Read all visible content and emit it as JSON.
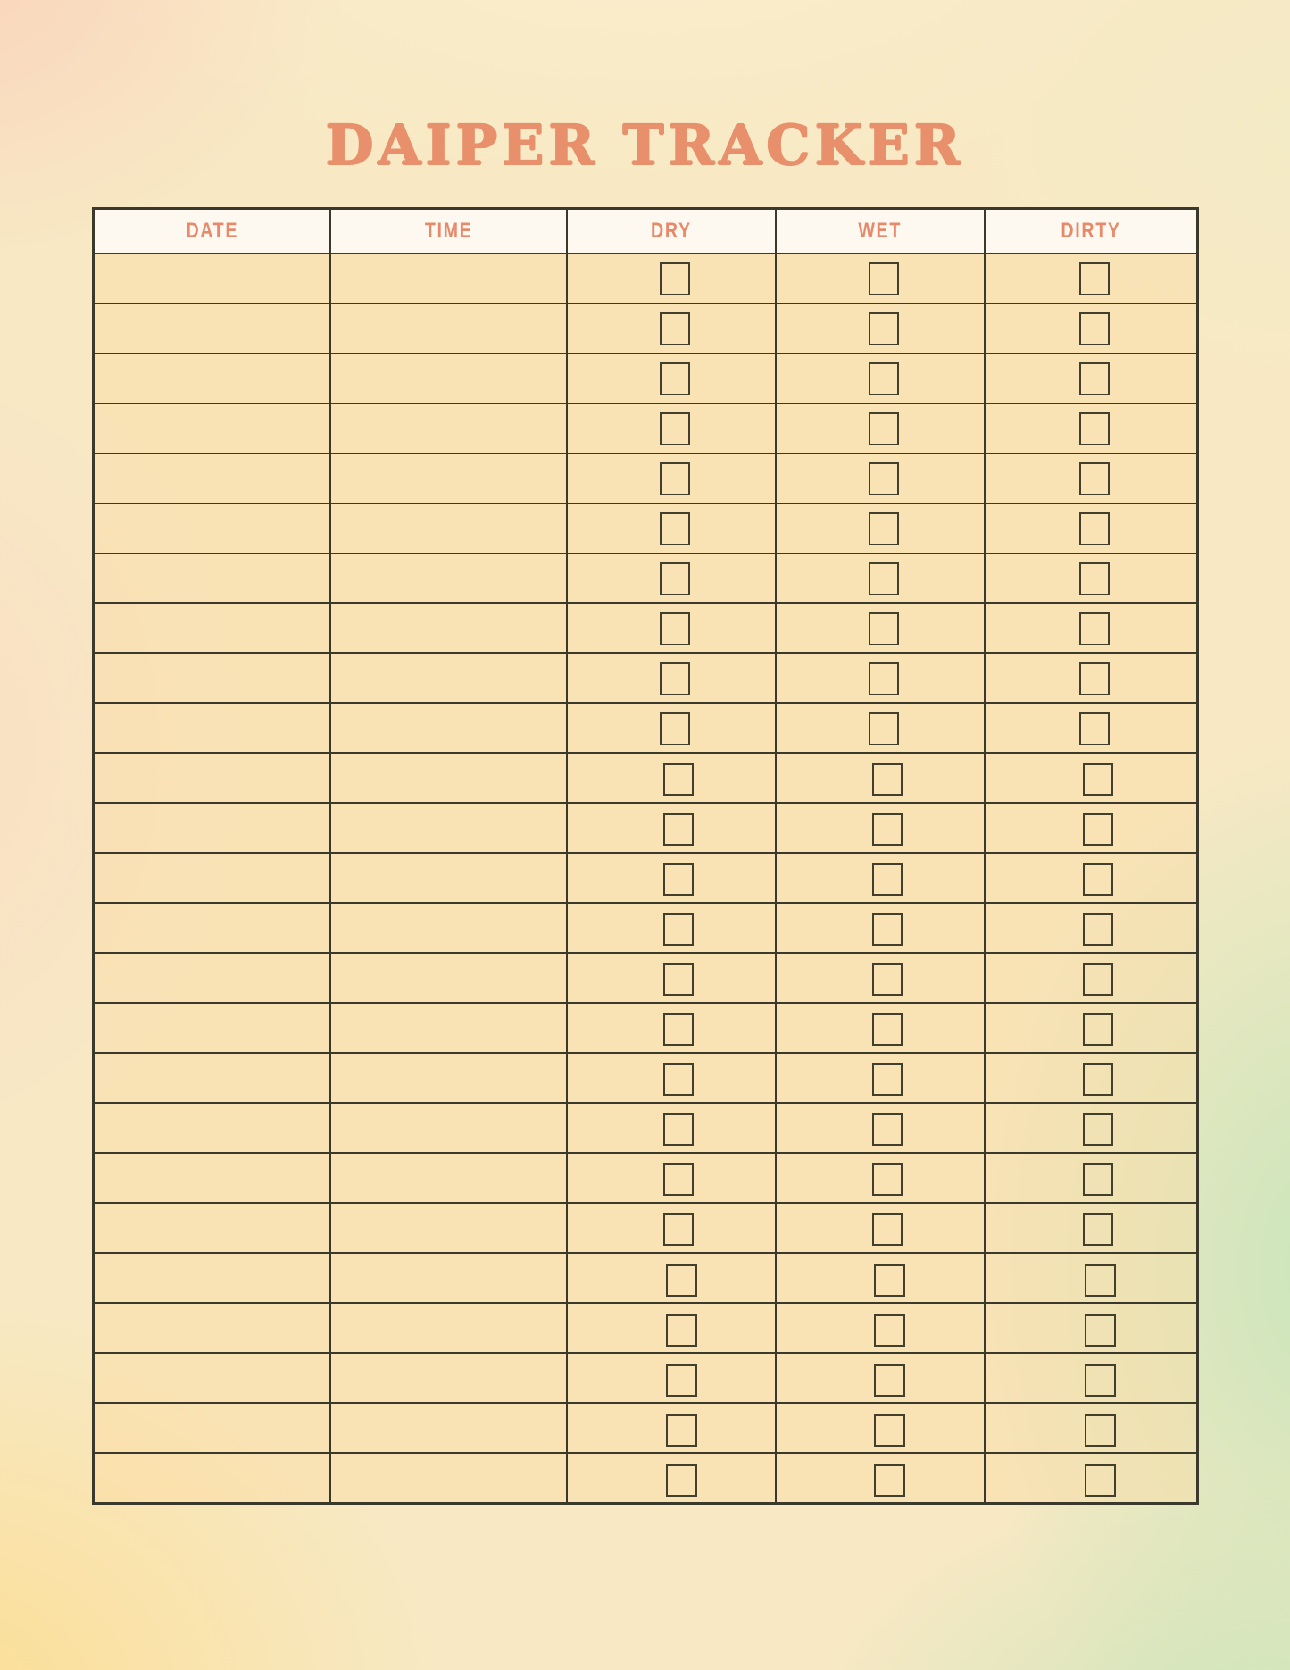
{
  "page": {
    "title": "DAIPER TRACKER"
  },
  "theme": {
    "accent_coral": "#E8906C",
    "table_border": "#3B382C",
    "header_bg": "#FDFAF3",
    "cell_bg": "#FAE5BD",
    "bg_corner_top_left": "#FAD3BC",
    "bg_corner_bottom_left": "#FCDB8A",
    "bg_right_mint": "#C6E5BA",
    "bg_base_cream": "#F8E9C4"
  },
  "table": {
    "columns": [
      {
        "key": "date",
        "label": "DATE"
      },
      {
        "key": "time",
        "label": "TIME"
      },
      {
        "key": "dry",
        "label": "DRY"
      },
      {
        "key": "wet",
        "label": "WET"
      },
      {
        "key": "dirty",
        "label": "DIRTY"
      }
    ],
    "row_count": 25,
    "rows": [
      {
        "date": "",
        "time": "",
        "dry": false,
        "wet": false,
        "dirty": false
      },
      {
        "date": "",
        "time": "",
        "dry": false,
        "wet": false,
        "dirty": false
      },
      {
        "date": "",
        "time": "",
        "dry": false,
        "wet": false,
        "dirty": false
      },
      {
        "date": "",
        "time": "",
        "dry": false,
        "wet": false,
        "dirty": false
      },
      {
        "date": "",
        "time": "",
        "dry": false,
        "wet": false,
        "dirty": false
      },
      {
        "date": "",
        "time": "",
        "dry": false,
        "wet": false,
        "dirty": false
      },
      {
        "date": "",
        "time": "",
        "dry": false,
        "wet": false,
        "dirty": false
      },
      {
        "date": "",
        "time": "",
        "dry": false,
        "wet": false,
        "dirty": false
      },
      {
        "date": "",
        "time": "",
        "dry": false,
        "wet": false,
        "dirty": false
      },
      {
        "date": "",
        "time": "",
        "dry": false,
        "wet": false,
        "dirty": false
      },
      {
        "date": "",
        "time": "",
        "dry": false,
        "wet": false,
        "dirty": false
      },
      {
        "date": "",
        "time": "",
        "dry": false,
        "wet": false,
        "dirty": false
      },
      {
        "date": "",
        "time": "",
        "dry": false,
        "wet": false,
        "dirty": false
      },
      {
        "date": "",
        "time": "",
        "dry": false,
        "wet": false,
        "dirty": false
      },
      {
        "date": "",
        "time": "",
        "dry": false,
        "wet": false,
        "dirty": false
      },
      {
        "date": "",
        "time": "",
        "dry": false,
        "wet": false,
        "dirty": false
      },
      {
        "date": "",
        "time": "",
        "dry": false,
        "wet": false,
        "dirty": false
      },
      {
        "date": "",
        "time": "",
        "dry": false,
        "wet": false,
        "dirty": false
      },
      {
        "date": "",
        "time": "",
        "dry": false,
        "wet": false,
        "dirty": false
      },
      {
        "date": "",
        "time": "",
        "dry": false,
        "wet": false,
        "dirty": false
      },
      {
        "date": "",
        "time": "",
        "dry": false,
        "wet": false,
        "dirty": false
      },
      {
        "date": "",
        "time": "",
        "dry": false,
        "wet": false,
        "dirty": false
      },
      {
        "date": "",
        "time": "",
        "dry": false,
        "wet": false,
        "dirty": false
      },
      {
        "date": "",
        "time": "",
        "dry": false,
        "wet": false,
        "dirty": false
      },
      {
        "date": "",
        "time": "",
        "dry": false,
        "wet": false,
        "dirty": false
      }
    ]
  }
}
